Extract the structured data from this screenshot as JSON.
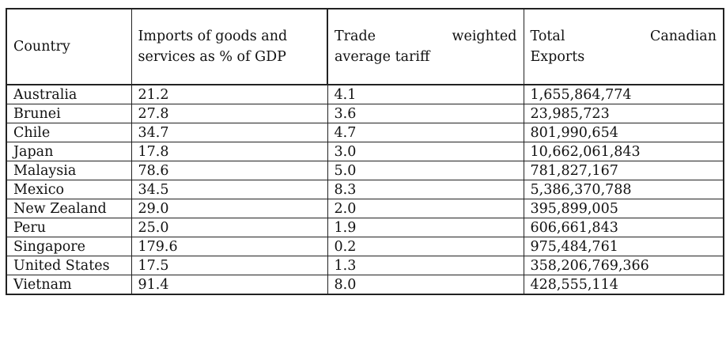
{
  "table": {
    "headers": {
      "country": "Country",
      "imports": "Imports of goods and services as % of GDP",
      "tariff_line1": "Trade weighted",
      "tariff_line2": "average tariff",
      "exports_line1": "Total Canadian",
      "exports_line2": "Exports"
    },
    "rows": [
      {
        "country": "Australia",
        "imports": "21.2",
        "tariff": "4.1",
        "exports": "1,655,864,774"
      },
      {
        "country": "Brunei",
        "imports": "27.8",
        "tariff": "3.6",
        "exports": "23,985,723"
      },
      {
        "country": "Chile",
        "imports": "34.7",
        "tariff": "4.7",
        "exports": "801,990,654"
      },
      {
        "country": "Japan",
        "imports": "17.8",
        "tariff": "3.0",
        "exports": "10,662,061,843"
      },
      {
        "country": "Malaysia",
        "imports": "78.6",
        "tariff": "5.0",
        "exports": "781,827,167"
      },
      {
        "country": "Mexico",
        "imports": "34.5",
        "tariff": "8.3",
        "exports": "5,386,370,788"
      },
      {
        "country": "New Zealand",
        "imports": "29.0",
        "tariff": "2.0",
        "exports": "395,899,005"
      },
      {
        "country": "Peru",
        "imports": "25.0",
        "tariff": "1.9",
        "exports": "606,661,843"
      },
      {
        "country": "Singapore",
        "imports": "179.6",
        "tariff": "0.2",
        "exports": "975,484,761"
      },
      {
        "country": "United States",
        "imports": "17.5",
        "tariff": "1.3",
        "exports": "358,206,769,366"
      },
      {
        "country": "Vietnam",
        "imports": "91.4",
        "tariff": "8.0",
        "exports": "428,555,114"
      }
    ]
  }
}
